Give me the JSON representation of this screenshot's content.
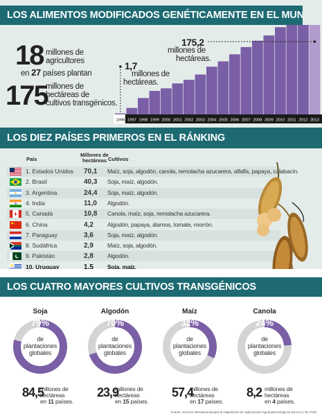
{
  "sections": {
    "world_title": "LOS ALIMENTOS MODIFICADOS GENÉTICAMENTE EN EL MUNDO",
    "ranking_title": "LOS DIEZ PAÍSES PRIMEROS EN EL RÁNKING",
    "crops_title": "LOS CUATRO MAYORES CULTIVOS TRANSGÉNICOS"
  },
  "stats": {
    "farmers_number": "18",
    "farmers_text_1": "millones de",
    "farmers_text_2": "agricultores",
    "farmers_text_3a": "en",
    "farmers_countries": "27",
    "farmers_text_3b": "países plantan",
    "hectares_number": "175",
    "hectares_text_1": "millones de",
    "hectares_text_2": "hectáreas de",
    "hectares_text_3": "cultivos transgénicos."
  },
  "annotations": {
    "start_value": "1,7",
    "start_unit_1": "millones de",
    "start_unit_2": "hectáreas.",
    "end_value": "175,2",
    "end_unit_1": "millones de",
    "end_unit_2": "hectáreas."
  },
  "chart_data": {
    "type": "bar",
    "categories": [
      "1996",
      "1997",
      "1998",
      "1999",
      "2000",
      "2001",
      "2002",
      "2003",
      "2004",
      "2005",
      "2006",
      "2007",
      "2008",
      "2009",
      "2010",
      "2011",
      "2012",
      "2013"
    ],
    "values": [
      1.7,
      11,
      27.8,
      39.9,
      44.2,
      52.6,
      58.7,
      67.7,
      81.0,
      90.0,
      102.0,
      114.3,
      125.0,
      134.0,
      148.0,
      160.0,
      170.3,
      175.2
    ],
    "ylim": [
      0,
      180
    ],
    "color": "#7b5fa6",
    "highlight_last_color": "#b19ccd"
  },
  "table": {
    "headers": {
      "country": "País",
      "hectares_1": "Millones de",
      "hectares_2": "hectáreas",
      "crops": "Cultivos"
    },
    "rows": [
      {
        "name": "1. Estados Unidos",
        "ha": "70,1",
        "crops": "Maíz, soja, algodón, canola, remolacha azucarera, alfalfa, papaya, calabacín.",
        "flag": "us-flag"
      },
      {
        "name": "2. Brasil",
        "ha": "40,3",
        "crops": "Soja, maíz, algodón.",
        "flag": "brazil-flag"
      },
      {
        "name": "3. Argentina",
        "ha": "24,4",
        "crops": "Soja, maíz, algodón.",
        "flag": "argentina-flag"
      },
      {
        "name": "4. India",
        "ha": "11,0",
        "crops": "Algodón.",
        "flag": "india-flag"
      },
      {
        "name": "5. Canadá",
        "ha": "10,8",
        "crops": "Canola, maíz, soja, remolacha azucarera.",
        "flag": "canada-flag"
      },
      {
        "name": "6. China",
        "ha": "4,2",
        "crops": "Algodón, papaya, álamos, tomate, morrón.",
        "flag": "china-flag"
      },
      {
        "name": "7. Paraguay",
        "ha": "3,6",
        "crops": "Soja, maíz, algodón.",
        "flag": "paraguay-flag"
      },
      {
        "name": "8. Sudáfrica",
        "ha": "2,9",
        "crops": "Maíz, soja, algodón.",
        "flag": "south-africa-flag"
      },
      {
        "name": "9. Pakistán",
        "ha": "2,8",
        "crops": "Algodón.",
        "flag": "pakistan-flag"
      },
      {
        "name": "10. Uruguay",
        "ha": "1,5",
        "crops": "Soja, maíz.",
        "flag": "uruguay-flag"
      }
    ]
  },
  "crops": [
    {
      "name": "Soja",
      "pct": "79%",
      "share": 0.79,
      "big": "84,5",
      "unit_1": "millones de",
      "unit_2": "hectáreas",
      "in": "en",
      "countries": "11",
      "countries_label": "países."
    },
    {
      "name": "Algodón",
      "pct": "70%",
      "share": 0.7,
      "big": "23,9",
      "unit_1": "millones de",
      "unit_2": "hectáreas",
      "in": "en",
      "countries": "15",
      "countries_label": "países."
    },
    {
      "name": "Maíz",
      "pct": "32%",
      "share": 0.32,
      "big": "57,4",
      "unit_1": "millones de",
      "unit_2": "hectáreas",
      "in": "en",
      "countries": "17",
      "countries_label": "países."
    },
    {
      "name": "Canola",
      "pct": "24%",
      "share": 0.24,
      "big": "8,2",
      "unit_1": "millones de",
      "unit_2": "hectáreas",
      "in": "en",
      "countries": "4",
      "countries_label": "países."
    }
  ],
  "donut_text": {
    "line1": "de",
    "line2": "plantaciones",
    "line3": "globales"
  },
  "colors": {
    "band": "#1d6a72",
    "panel": "#e4ecea",
    "donut": "#7b5fa6",
    "donut_rest": "#d4d4d4"
  },
  "source": "Fuente: Servicio Internacional para la Adquisición de Aplicaciones Agrobiotecnológicas (ISAAA) / EL PAÍS"
}
